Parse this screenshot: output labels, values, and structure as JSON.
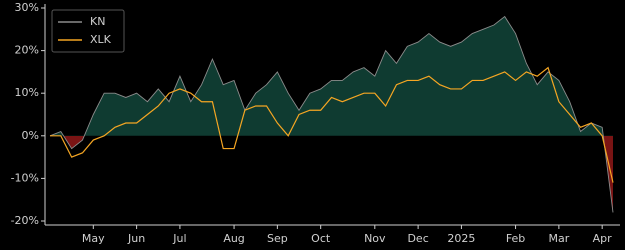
{
  "chart_data": {
    "type": "line",
    "categories": [
      null,
      null,
      null,
      null,
      "May",
      null,
      null,
      null,
      "Jun",
      null,
      null,
      null,
      "Jul",
      null,
      null,
      null,
      null,
      "Aug",
      null,
      null,
      null,
      "Sep",
      null,
      null,
      null,
      "Oct",
      null,
      null,
      null,
      null,
      "Nov",
      null,
      null,
      null,
      "Dec",
      null,
      null,
      null,
      "2025",
      null,
      null,
      null,
      null,
      "Feb",
      null,
      null,
      null,
      "Mar",
      null,
      null,
      null,
      "Apr",
      null
    ],
    "series": [
      {
        "name": "KN",
        "color": "#8c8c8c",
        "fill_positive": "#0f3b31",
        "fill_negative": "#7a1414",
        "values": [
          0,
          1,
          -3,
          -1,
          5,
          10,
          10,
          9,
          10,
          8,
          11,
          8,
          14,
          8,
          12,
          18,
          12,
          13,
          6,
          10,
          12,
          15,
          10,
          6,
          10,
          11,
          13,
          13,
          15,
          16,
          14,
          20,
          17,
          21,
          22,
          24,
          22,
          21,
          22,
          24,
          25,
          26,
          28,
          24,
          17,
          12,
          15,
          13,
          8,
          1,
          3,
          2,
          -18
        ]
      },
      {
        "name": "XLK",
        "color": "#f5a623",
        "values": [
          0,
          0,
          -5,
          -4,
          -1,
          0,
          2,
          3,
          3,
          5,
          7,
          10,
          11,
          10,
          8,
          8,
          -3,
          -3,
          6,
          7,
          7,
          3,
          0,
          5,
          6,
          6,
          9,
          8,
          9,
          10,
          10,
          7,
          12,
          13,
          13,
          14,
          12,
          11,
          11,
          13,
          13,
          14,
          15,
          13,
          15,
          14,
          16,
          8,
          5,
          2,
          3,
          0,
          -11
        ]
      }
    ],
    "ylim": [
      -20,
      30
    ],
    "yticks": [
      {
        "value": -20,
        "label": "-20%"
      },
      {
        "value": -10,
        "label": "-10%"
      },
      {
        "value": 0,
        "label": "0%"
      },
      {
        "value": 10,
        "label": "10%"
      },
      {
        "value": 20,
        "label": "20%"
      },
      {
        "value": 30,
        "label": "30%"
      }
    ],
    "legend": "upper left"
  }
}
